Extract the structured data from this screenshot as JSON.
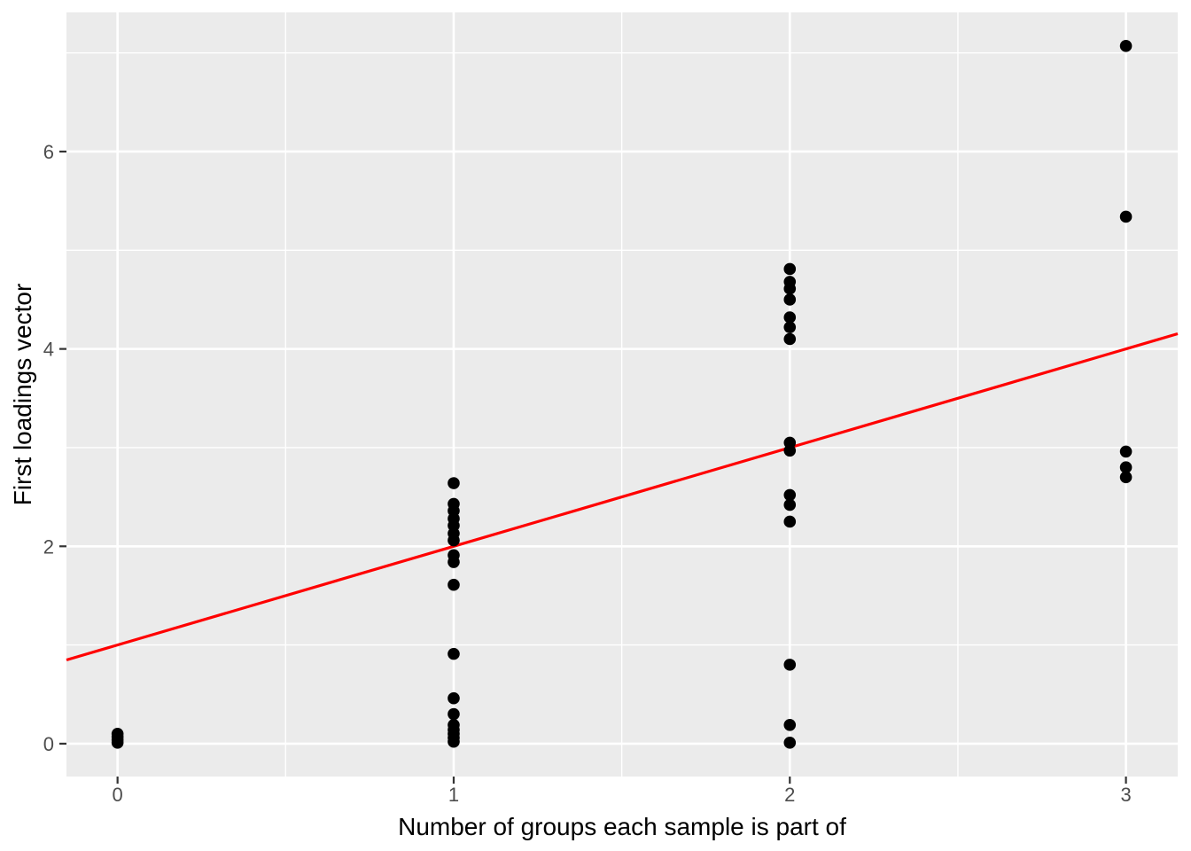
{
  "chart_data": {
    "type": "scatter",
    "title": "",
    "xlabel": "Number of groups each sample is part of",
    "ylabel": "First loadings vector",
    "x_ticks": [
      0,
      1,
      2,
      3
    ],
    "y_ticks": [
      0,
      2,
      4,
      6
    ],
    "x_minor_ticks": [
      0.5,
      1.5,
      2.5
    ],
    "y_minor_ticks": [
      1,
      3,
      5,
      7
    ],
    "xlim": [
      -0.152,
      3.154
    ],
    "ylim": [
      -0.333,
      7.41
    ],
    "grid": "major+minor",
    "legend": "none",
    "points": [
      {
        "x": 0,
        "y": 0.01
      },
      {
        "x": 0,
        "y": 0.04
      },
      {
        "x": 0,
        "y": 0.07
      },
      {
        "x": 0,
        "y": 0.1
      },
      {
        "x": 1,
        "y": 2.64
      },
      {
        "x": 1,
        "y": 2.43
      },
      {
        "x": 1,
        "y": 2.36
      },
      {
        "x": 1,
        "y": 2.28
      },
      {
        "x": 1,
        "y": 2.21
      },
      {
        "x": 1,
        "y": 2.13
      },
      {
        "x": 1,
        "y": 2.06
      },
      {
        "x": 1,
        "y": 1.91
      },
      {
        "x": 1,
        "y": 1.84
      },
      {
        "x": 1,
        "y": 1.61
      },
      {
        "x": 1,
        "y": 0.91
      },
      {
        "x": 1,
        "y": 0.46
      },
      {
        "x": 1,
        "y": 0.3
      },
      {
        "x": 1,
        "y": 0.19
      },
      {
        "x": 1,
        "y": 0.14
      },
      {
        "x": 1,
        "y": 0.1
      },
      {
        "x": 1,
        "y": 0.06
      },
      {
        "x": 1,
        "y": 0.02
      },
      {
        "x": 2,
        "y": 4.81
      },
      {
        "x": 2,
        "y": 4.68
      },
      {
        "x": 2,
        "y": 4.61
      },
      {
        "x": 2,
        "y": 4.5
      },
      {
        "x": 2,
        "y": 4.32
      },
      {
        "x": 2,
        "y": 4.22
      },
      {
        "x": 2,
        "y": 4.1
      },
      {
        "x": 2,
        "y": 3.05
      },
      {
        "x": 2,
        "y": 2.97
      },
      {
        "x": 2,
        "y": 2.52
      },
      {
        "x": 2,
        "y": 2.42
      },
      {
        "x": 2,
        "y": 2.25
      },
      {
        "x": 2,
        "y": 0.8
      },
      {
        "x": 2,
        "y": 0.19
      },
      {
        "x": 2,
        "y": 0.01
      },
      {
        "x": 3,
        "y": 7.07
      },
      {
        "x": 3,
        "y": 5.34
      },
      {
        "x": 3,
        "y": 2.96
      },
      {
        "x": 3,
        "y": 2.8
      },
      {
        "x": 3,
        "y": 2.7
      }
    ],
    "regression_line": {
      "slope": 1.0,
      "intercept": 1.0,
      "color": "#FF0000"
    },
    "point_color": "#000000",
    "colors": {
      "panel_bg": "#EBEBEB",
      "grid": "#FFFFFF",
      "tick_label": "#4D4D4D",
      "axis_title": "#000000",
      "tick_mark": "#333333",
      "background": "#FFFFFF"
    }
  }
}
